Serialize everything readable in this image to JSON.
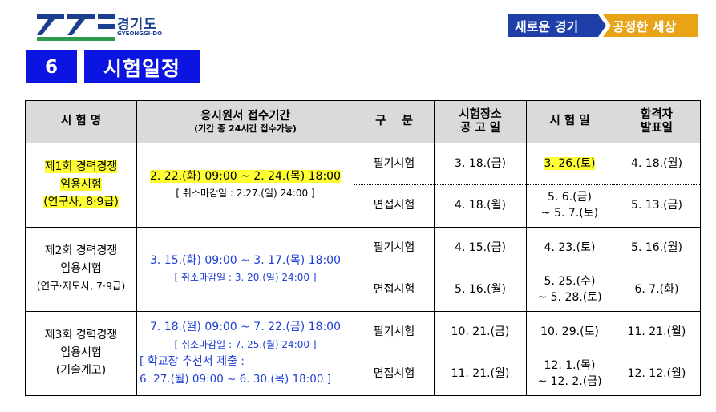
{
  "header": {
    "logo_text": "경기도",
    "logo_sub": "GYEONGGI-DO",
    "slogan_left": "새로운 경기",
    "slogan_right": "공정한 세상"
  },
  "section": {
    "number": "6",
    "title": "시험일정"
  },
  "colors": {
    "section_bg": "#0b14e0",
    "header_bg": "#dadada",
    "highlight": "#ffff33",
    "blue_text": "#1f3fd6",
    "logo_blue": "#1a3f8f",
    "logo_green": "#2e9a4b"
  },
  "table": {
    "headers": {
      "name": "시 험 명",
      "period": "응시원서 접수기간",
      "period_note": "(기간 중 24시간 접수가능)",
      "type": "구    분",
      "venue": "시험장소\n공 고 일",
      "exam_date": "시 험 일",
      "result": "합격자\n발표일"
    },
    "rounds": [
      {
        "name": [
          "제1회 경력경쟁",
          "임용시험",
          "(연구사, 8·9급)"
        ],
        "period": "2. 22.(화) 09:00 ~ 2. 24.(목) 18:00",
        "cancel": "[ 취소마감일 : 2.27.(일) 24:00 ]",
        "written": {
          "type": "필기시험",
          "venue": "3. 18.(금)",
          "exam": "3. 26.(토)",
          "result": "4. 18.(월)"
        },
        "interview": {
          "type": "면접시험",
          "venue": "4. 18.(월)",
          "exam": [
            "5. 6.(금)",
            "~ 5. 7.(토)"
          ],
          "result": "5. 13.(금)"
        }
      },
      {
        "name": [
          "제2회 경력경쟁",
          "임용시험",
          "(연구·지도사, 7·9급)"
        ],
        "period": "3. 15.(화) 09:00 ~ 3. 17.(목) 18:00",
        "cancel": "[ 취소마감일 : 3. 20.(일) 24:00 ]",
        "written": {
          "type": "필기시험",
          "venue": "4. 15.(금)",
          "exam": "4. 23.(토)",
          "result": "5. 16.(월)"
        },
        "interview": {
          "type": "면접시험",
          "venue": "5. 16.(월)",
          "exam": [
            "5. 25.(수)",
            "~ 5. 28.(토)"
          ],
          "result": "6. 7.(화)"
        }
      },
      {
        "name": [
          "제3회 경력경쟁",
          "임용시험",
          "(기술계고)"
        ],
        "period": "7. 18.(월) 09:00 ~ 7. 22.(금) 18:00",
        "cancel": "[ 취소마감일 : 7. 25.(월) 24:00 ]",
        "recommend_title": "[ 학교장 추천서 제출 :",
        "recommend_period": "6. 27.(월) 09:00  ~  6. 30.(목) 18:00 ]",
        "written": {
          "type": "필기시험",
          "venue": "10. 21.(금)",
          "exam": "10. 29.(토)",
          "result": "11. 21.(월)"
        },
        "interview": {
          "type": "면접시험",
          "venue": "11. 21.(월)",
          "exam": [
            "12. 1.(목)",
            "~ 12. 2.(금)"
          ],
          "result": "12. 12.(월)"
        }
      }
    ]
  }
}
